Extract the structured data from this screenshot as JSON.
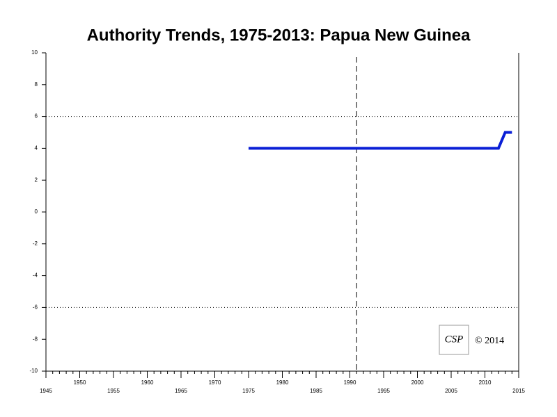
{
  "chart_data": {
    "type": "line",
    "title": "Authority Trends, 1975-2013: Papua New Guinea",
    "x": [
      1975,
      2012,
      2013,
      2014
    ],
    "series": [
      {
        "color": "#0a1fd6",
        "values": [
          4,
          4,
          5,
          5
        ]
      }
    ],
    "xlim": [
      1945,
      2015
    ],
    "xticks": [
      1945,
      1950,
      1955,
      1960,
      1965,
      1970,
      1975,
      1980,
      1985,
      1990,
      1995,
      2000,
      2005,
      2010,
      2015
    ],
    "ylim": [
      -10,
      10
    ],
    "yticks": [
      10,
      8,
      6,
      4,
      2,
      0,
      -2,
      -4,
      -6,
      -8,
      -10
    ],
    "vline": 1991,
    "hlines": [
      6,
      -6
    ],
    "logo": "CSP",
    "copyright": "© 2014"
  }
}
